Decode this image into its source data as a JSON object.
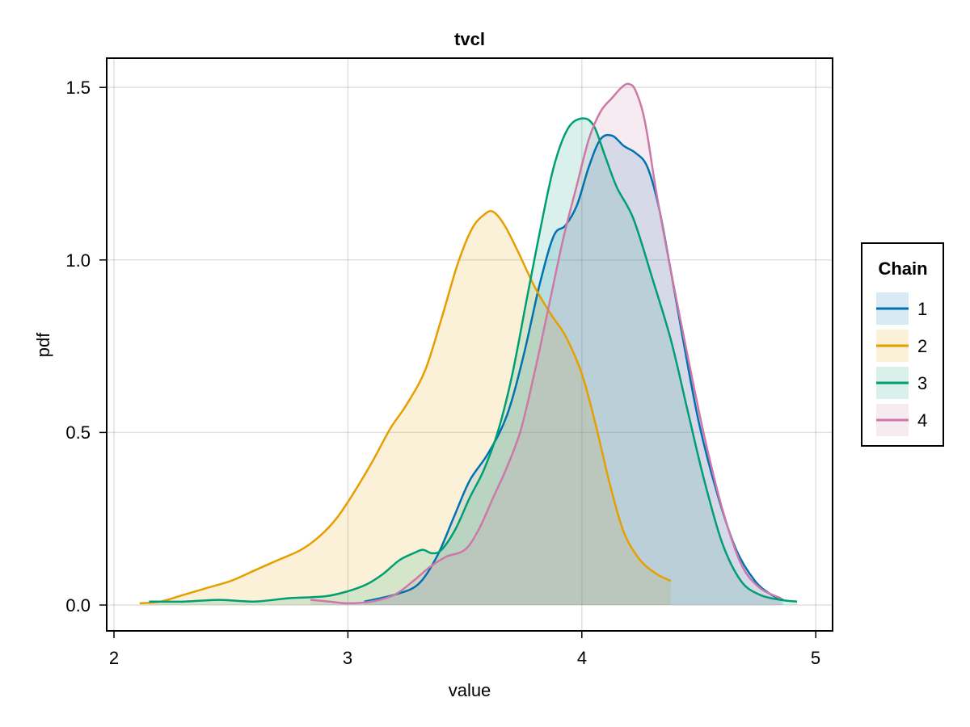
{
  "chart_data": {
    "type": "area",
    "title": "tvcl",
    "xlabel": "value",
    "ylabel": "pdf",
    "xlim": [
      1.97,
      5.07
    ],
    "ylim": [
      -0.075,
      1.59
    ],
    "xticks": [
      2,
      3,
      4,
      5
    ],
    "xtick_labels": [
      "2",
      "3",
      "4",
      "5"
    ],
    "yticks": [
      0.0,
      0.5,
      1.0,
      1.5
    ],
    "ytick_labels": [
      "0.0",
      "0.5",
      "1.0",
      "1.5"
    ],
    "grid": true,
    "legend": {
      "title": "Chain",
      "position": "right",
      "entries": [
        "1",
        "2",
        "3",
        "4"
      ]
    },
    "series": [
      {
        "name": "1",
        "color": "#0072b2",
        "fill_opacity": 0.15,
        "x": [
          3.07,
          3.2,
          3.3,
          3.38,
          3.45,
          3.52,
          3.6,
          3.68,
          3.75,
          3.82,
          3.88,
          3.93,
          3.98,
          4.03,
          4.08,
          4.13,
          4.18,
          4.23,
          4.28,
          4.33,
          4.38,
          4.43,
          4.5,
          4.58,
          4.66,
          4.74,
          4.81,
          4.86
        ],
        "y": [
          0.01,
          0.03,
          0.06,
          0.14,
          0.25,
          0.36,
          0.44,
          0.55,
          0.72,
          0.93,
          1.07,
          1.1,
          1.16,
          1.27,
          1.35,
          1.36,
          1.33,
          1.31,
          1.27,
          1.15,
          0.97,
          0.78,
          0.53,
          0.32,
          0.16,
          0.07,
          0.03,
          0.015
        ]
      },
      {
        "name": "2",
        "color": "#e69f00",
        "fill_opacity": 0.15,
        "x": [
          2.11,
          2.2,
          2.3,
          2.4,
          2.5,
          2.6,
          2.7,
          2.8,
          2.88,
          2.95,
          3.02,
          3.1,
          3.18,
          3.25,
          3.33,
          3.4,
          3.47,
          3.53,
          3.58,
          3.62,
          3.67,
          3.73,
          3.8,
          3.87,
          3.93,
          4.0,
          4.06,
          4.12,
          4.18,
          4.25,
          4.32,
          4.38
        ],
        "y": [
          0.005,
          0.01,
          0.03,
          0.05,
          0.07,
          0.1,
          0.13,
          0.16,
          0.2,
          0.25,
          0.32,
          0.41,
          0.51,
          0.58,
          0.68,
          0.83,
          0.99,
          1.09,
          1.13,
          1.14,
          1.1,
          1.02,
          0.92,
          0.84,
          0.78,
          0.67,
          0.52,
          0.35,
          0.21,
          0.13,
          0.09,
          0.07
        ]
      },
      {
        "name": "3",
        "color": "#009e73",
        "fill_opacity": 0.15,
        "x": [
          2.15,
          2.3,
          2.45,
          2.6,
          2.75,
          2.9,
          3.0,
          3.08,
          3.15,
          3.22,
          3.28,
          3.32,
          3.36,
          3.4,
          3.46,
          3.52,
          3.58,
          3.64,
          3.7,
          3.76,
          3.82,
          3.88,
          3.94,
          4.0,
          4.05,
          4.1,
          4.15,
          4.22,
          4.3,
          4.38,
          4.45,
          4.52,
          4.6,
          4.68,
          4.76,
          4.85,
          4.92
        ],
        "y": [
          0.01,
          0.01,
          0.015,
          0.01,
          0.02,
          0.025,
          0.04,
          0.06,
          0.09,
          0.13,
          0.15,
          0.16,
          0.15,
          0.16,
          0.22,
          0.31,
          0.39,
          0.5,
          0.66,
          0.87,
          1.08,
          1.27,
          1.38,
          1.41,
          1.39,
          1.3,
          1.21,
          1.12,
          0.95,
          0.77,
          0.57,
          0.37,
          0.18,
          0.07,
          0.03,
          0.015,
          0.01
        ]
      },
      {
        "name": "4",
        "color": "#cc79a7",
        "fill_opacity": 0.15,
        "x": [
          2.84,
          2.92,
          3.0,
          3.1,
          3.2,
          3.28,
          3.35,
          3.42,
          3.5,
          3.56,
          3.62,
          3.68,
          3.74,
          3.8,
          3.86,
          3.92,
          3.98,
          4.03,
          4.08,
          4.13,
          4.17,
          4.2,
          4.23,
          4.27,
          4.32,
          4.38,
          4.45,
          4.52,
          4.6,
          4.68,
          4.76,
          4.85
        ],
        "y": [
          0.015,
          0.01,
          0.005,
          0.01,
          0.03,
          0.07,
          0.11,
          0.14,
          0.16,
          0.22,
          0.31,
          0.4,
          0.51,
          0.68,
          0.87,
          1.06,
          1.22,
          1.35,
          1.43,
          1.47,
          1.5,
          1.51,
          1.49,
          1.4,
          1.19,
          0.97,
          0.73,
          0.5,
          0.28,
          0.12,
          0.05,
          0.02
        ]
      }
    ]
  },
  "figure": {
    "title": "tvcl",
    "xlabel": "value",
    "ylabel": "pdf",
    "legend_title": "Chain",
    "legend_labels": [
      "1",
      "2",
      "3",
      "4"
    ],
    "xtick_labels": [
      "2",
      "3",
      "4",
      "5"
    ],
    "ytick_labels": [
      "0.0",
      "0.5",
      "1.0",
      "1.5"
    ]
  }
}
